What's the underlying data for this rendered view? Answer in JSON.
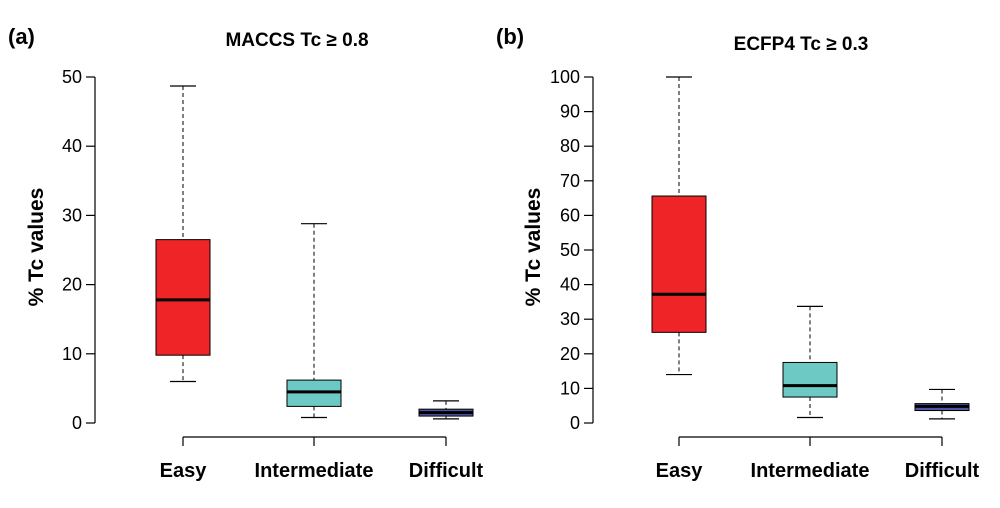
{
  "chart_data": [
    {
      "panel_label": "(a)",
      "type": "box",
      "title": "MACCS Tc ≥ 0.8",
      "xlabel": "",
      "ylabel": "% Tc values",
      "ylim": [
        0,
        50
      ],
      "yticks": [
        "0",
        "10",
        "20",
        "30",
        "40",
        "50"
      ],
      "categories": [
        "Easy",
        "Intermediate",
        "Difficult"
      ],
      "boxes": [
        {
          "category": "Easy",
          "min": 6.0,
          "q1": 9.8,
          "median": 17.8,
          "q3": 26.5,
          "max": 48.7,
          "color": "#ee2427"
        },
        {
          "category": "Intermediate",
          "min": 0.8,
          "q1": 2.4,
          "median": 4.5,
          "q3": 6.2,
          "max": 28.8,
          "color": "#6cc9c4"
        },
        {
          "category": "Difficult",
          "min": 0.6,
          "q1": 1.0,
          "median": 1.5,
          "q3": 2.0,
          "max": 3.2,
          "color": "#4f57a4"
        }
      ]
    },
    {
      "panel_label": "(b)",
      "type": "box",
      "title": "ECFP4 Tc ≥ 0.3",
      "xlabel": "",
      "ylabel": "% Tc values",
      "ylim": [
        0,
        100
      ],
      "yticks": [
        "0",
        "10",
        "20",
        "30",
        "40",
        "50",
        "60",
        "70",
        "80",
        "90",
        "100"
      ],
      "categories": [
        "Easy",
        "Intermediate",
        "Difficult"
      ],
      "boxes": [
        {
          "category": "Easy",
          "min": 14.0,
          "q1": 26.2,
          "median": 37.2,
          "q3": 65.6,
          "max": 100.0,
          "color": "#ee2427"
        },
        {
          "category": "Intermediate",
          "min": 1.6,
          "q1": 7.5,
          "median": 10.8,
          "q3": 17.5,
          "max": 33.7,
          "color": "#6cc9c4"
        },
        {
          "category": "Difficult",
          "min": 1.2,
          "q1": 3.6,
          "median": 4.8,
          "q3": 5.6,
          "max": 9.7,
          "color": "#4f57a4"
        }
      ]
    }
  ]
}
